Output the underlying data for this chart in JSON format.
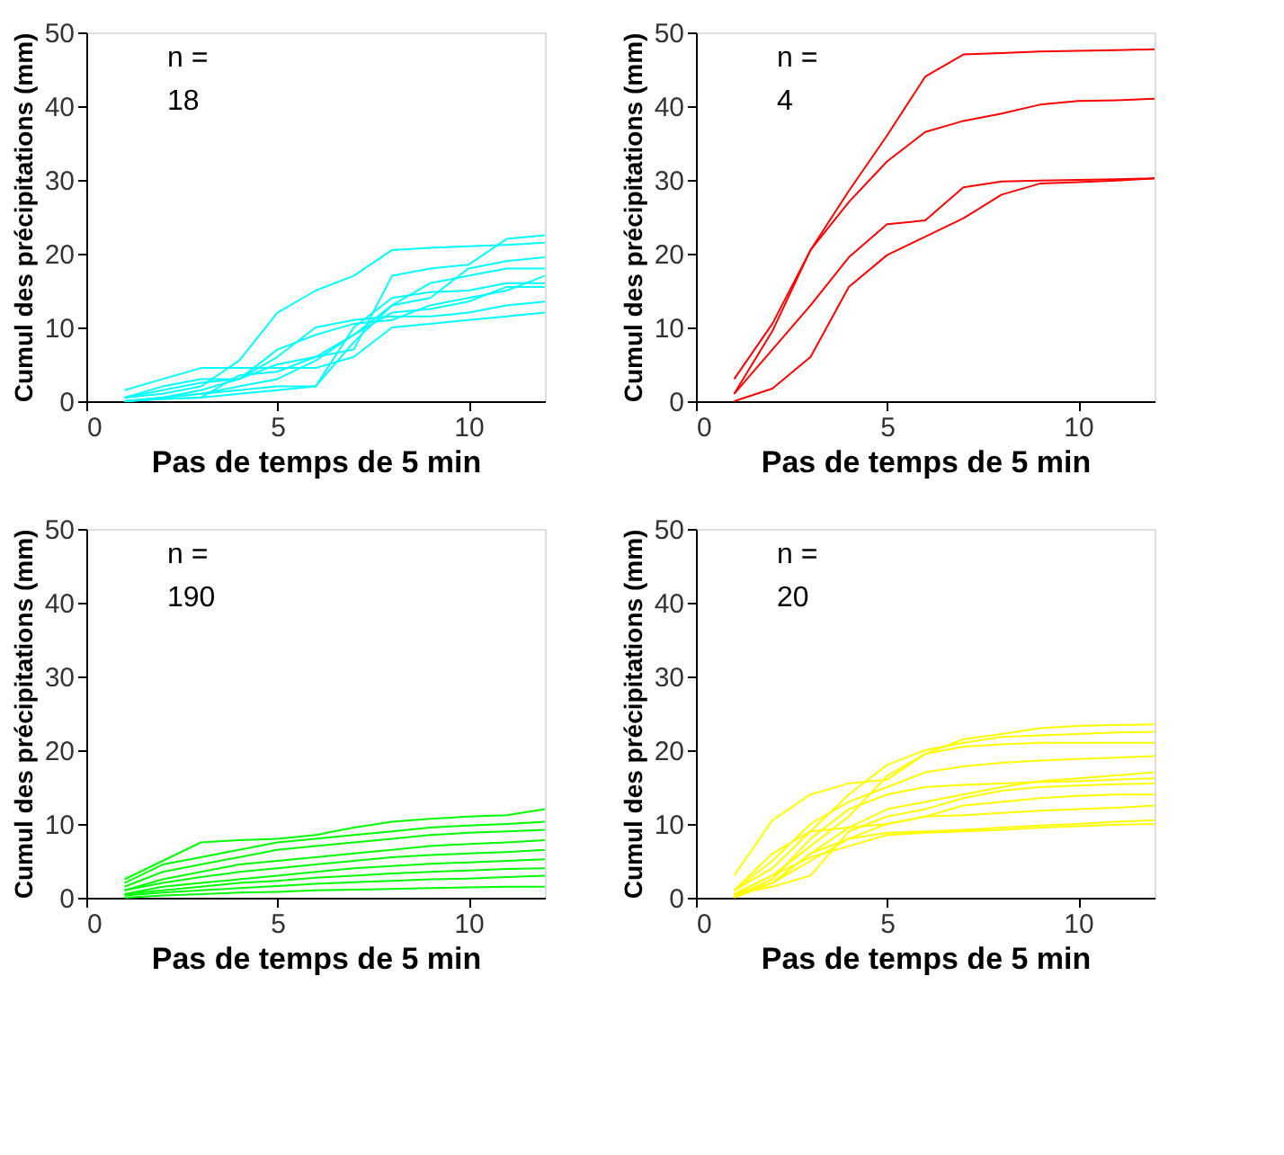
{
  "chart_data": [
    {
      "type": "line",
      "xlabel": "Pas de temps de 5 min",
      "ylabel": "Cumul des précipitations (mm)",
      "annotations": [
        "n =",
        "18"
      ],
      "x": [
        1,
        2,
        3,
        4,
        5,
        6,
        7,
        8,
        9,
        10,
        11,
        12
      ],
      "xlim": [
        0,
        12
      ],
      "ylim": [
        0,
        50
      ],
      "xticks": [
        0,
        5,
        10
      ],
      "yticks": [
        0,
        10,
        20,
        30,
        40,
        50
      ],
      "series": [
        {
          "color": "#00ffff",
          "values": [
            1.5,
            3,
            4.5,
            4.5,
            4.5,
            4.5,
            6,
            10,
            10.5,
            11,
            11.5,
            12
          ]
        },
        {
          "color": "#00ffff",
          "values": [
            0.5,
            1,
            2,
            5.5,
            12,
            15,
            17,
            20.5,
            20.8,
            21,
            21.2,
            21.5
          ]
        },
        {
          "color": "#00ffff",
          "values": [
            0,
            0.5,
            1,
            1.5,
            2,
            2,
            8,
            13,
            14,
            18,
            19,
            19.5
          ]
        },
        {
          "color": "#00ffff",
          "values": [
            0,
            0.5,
            1,
            2,
            3,
            5.5,
            9,
            12,
            12.5,
            13.5,
            15.5,
            15.5
          ]
        },
        {
          "color": "#00ffff",
          "values": [
            0.5,
            1.5,
            2.5,
            3,
            7,
            9,
            10.5,
            11,
            13,
            14,
            15,
            17
          ]
        },
        {
          "color": "#00ffff",
          "values": [
            0,
            0.3,
            0.5,
            1,
            1.5,
            2,
            10,
            14,
            14.8,
            15,
            16,
            16
          ]
        },
        {
          "color": "#00ffff",
          "values": [
            0,
            0.5,
            1.5,
            3,
            5,
            6,
            9,
            13,
            16,
            17,
            18,
            18
          ]
        },
        {
          "color": "#00ffff",
          "values": [
            0.5,
            2,
            3,
            3,
            6,
            10,
            11,
            11.5,
            11.5,
            12,
            13,
            13.5
          ]
        },
        {
          "color": "#00ffff",
          "values": [
            0,
            0.3,
            0.5,
            3.5,
            4,
            6,
            7,
            17,
            18,
            18.5,
            22,
            22.5
          ]
        }
      ]
    },
    {
      "type": "line",
      "xlabel": "Pas de temps de 5 min",
      "ylabel": "Cumul des précipitations (mm)",
      "annotations": [
        "n =",
        "4"
      ],
      "x": [
        1,
        2,
        3,
        4,
        5,
        6,
        7,
        8,
        9,
        10,
        11,
        12
      ],
      "xlim": [
        0,
        12
      ],
      "ylim": [
        0,
        50
      ],
      "xticks": [
        0,
        5,
        10
      ],
      "yticks": [
        0,
        10,
        20,
        30,
        40,
        50
      ],
      "series": [
        {
          "color": "#ff0000",
          "values": [
            3,
            10.5,
            20.5,
            28.5,
            36,
            44,
            47,
            47.2,
            47.4,
            47.5,
            47.6,
            47.7
          ]
        },
        {
          "color": "#ff0000",
          "values": [
            1,
            9.5,
            20.5,
            27,
            32.5,
            36.5,
            38,
            39,
            40.2,
            40.7,
            40.8,
            41
          ]
        },
        {
          "color": "#ff0000",
          "values": [
            1,
            7,
            13,
            19.5,
            24,
            24.5,
            29,
            29.8,
            29.9,
            30,
            30.1,
            30.2
          ]
        },
        {
          "color": "#ff0000",
          "values": [
            0,
            1.7,
            6,
            15.5,
            19.8,
            22.3,
            24.8,
            28,
            29.5,
            29.7,
            29.9,
            30.2
          ]
        }
      ]
    },
    {
      "type": "line",
      "xlabel": "Pas de temps de 5 min",
      "ylabel": "Cumul des précipitations (mm)",
      "annotations": [
        "n =",
        "190"
      ],
      "x": [
        1,
        2,
        3,
        4,
        5,
        6,
        7,
        8,
        9,
        10,
        11,
        12
      ],
      "xlim": [
        0,
        12
      ],
      "ylim": [
        0,
        50
      ],
      "xticks": [
        0,
        5,
        10
      ],
      "yticks": [
        0,
        10,
        20,
        30,
        40,
        50
      ],
      "series": [
        {
          "color": "#00ff00",
          "values": [
            2.5,
            5,
            7.5,
            7.8,
            8,
            8.5,
            9.5,
            10.3,
            10.7,
            11,
            11.2,
            12
          ]
        },
        {
          "color": "#00ff00",
          "values": [
            2,
            4.5,
            5.5,
            6.5,
            7.5,
            8,
            8.5,
            9,
            9.5,
            9.8,
            10,
            10.3
          ]
        },
        {
          "color": "#00ff00",
          "values": [
            1.5,
            3.5,
            4.5,
            5.5,
            6.5,
            7,
            7.5,
            8,
            8.5,
            8.8,
            9,
            9.2
          ]
        },
        {
          "color": "#00ff00",
          "values": [
            1,
            2.5,
            3.5,
            4.5,
            5,
            5.5,
            6,
            6.5,
            7,
            7.3,
            7.5,
            7.8
          ]
        },
        {
          "color": "#00ff00",
          "values": [
            1,
            2,
            2.8,
            3.5,
            4,
            4.5,
            5,
            5.5,
            5.8,
            6,
            6.2,
            6.5
          ]
        },
        {
          "color": "#00ff00",
          "values": [
            0.5,
            1.5,
            2,
            2.5,
            3,
            3.5,
            4,
            4.3,
            4.6,
            4.8,
            5,
            5.2
          ]
        },
        {
          "color": "#00ff00",
          "values": [
            0.5,
            1,
            1.5,
            2,
            2.3,
            2.7,
            3,
            3.3,
            3.5,
            3.7,
            3.9,
            4
          ]
        },
        {
          "color": "#00ff00",
          "values": [
            0.3,
            0.7,
            1,
            1.3,
            1.6,
            1.9,
            2.1,
            2.3,
            2.5,
            2.6,
            2.8,
            3
          ]
        },
        {
          "color": "#00ff00",
          "values": [
            0,
            0.3,
            0.5,
            0.7,
            0.8,
            1,
            1.1,
            1.2,
            1.3,
            1.4,
            1.5,
            1.5
          ]
        }
      ]
    },
    {
      "type": "line",
      "xlabel": "Pas de temps de 5 min",
      "ylabel": "Cumul des précipitations (mm)",
      "annotations": [
        "n =",
        "20"
      ],
      "x": [
        1,
        2,
        3,
        4,
        5,
        6,
        7,
        8,
        9,
        10,
        11,
        12
      ],
      "xlim": [
        0,
        12
      ],
      "ylim": [
        0,
        50
      ],
      "xticks": [
        0,
        5,
        10
      ],
      "yticks": [
        0,
        10,
        20,
        30,
        40,
        50
      ],
      "series": [
        {
          "color": "#ffff00",
          "values": [
            3,
            10.5,
            14,
            15.5,
            16,
            19.5,
            21.5,
            22.2,
            23,
            23.3,
            23.4,
            23.5
          ]
        },
        {
          "color": "#ffff00",
          "values": [
            1,
            4,
            9,
            14,
            18,
            20,
            21,
            21.8,
            22,
            22.2,
            22.4,
            22.5
          ]
        },
        {
          "color": "#ffff00",
          "values": [
            0.5,
            3,
            7,
            11,
            16.5,
            19.5,
            20.5,
            20.8,
            21,
            21,
            21,
            21
          ]
        },
        {
          "color": "#ffff00",
          "values": [
            1,
            5,
            10,
            13,
            15,
            17,
            17.8,
            18.3,
            18.6,
            18.8,
            19,
            19.2
          ]
        },
        {
          "color": "#ffff00",
          "values": [
            0.5,
            2,
            6,
            9.5,
            12,
            13,
            14,
            15,
            15.8,
            16.2,
            16.6,
            17
          ]
        },
        {
          "color": "#ffff00",
          "values": [
            0.2,
            2.5,
            8,
            12,
            14,
            15,
            15.3,
            15.5,
            15.7,
            15.8,
            16,
            16.2
          ]
        },
        {
          "color": "#ffff00",
          "values": [
            0.5,
            1.5,
            3,
            9,
            11,
            12,
            13.5,
            14.5,
            15,
            15.2,
            15.4,
            15.5
          ]
        },
        {
          "color": "#ffff00",
          "values": [
            0.1,
            2,
            5,
            8,
            10,
            11,
            12.5,
            13,
            13.5,
            13.8,
            14,
            14
          ]
        },
        {
          "color": "#ffff00",
          "values": [
            1,
            6,
            9,
            9.5,
            10,
            11,
            11.2,
            11.5,
            11.8,
            12,
            12.2,
            12.5
          ]
        },
        {
          "color": "#ffff00",
          "values": [
            0,
            2,
            6,
            8,
            8.8,
            9,
            9.2,
            9.5,
            9.8,
            10,
            10.3,
            10.5
          ]
        },
        {
          "color": "#ffff00",
          "values": [
            0.5,
            3,
            5.5,
            7,
            8.5,
            8.8,
            9,
            9.2,
            9.5,
            9.7,
            9.9,
            10
          ]
        }
      ]
    }
  ]
}
